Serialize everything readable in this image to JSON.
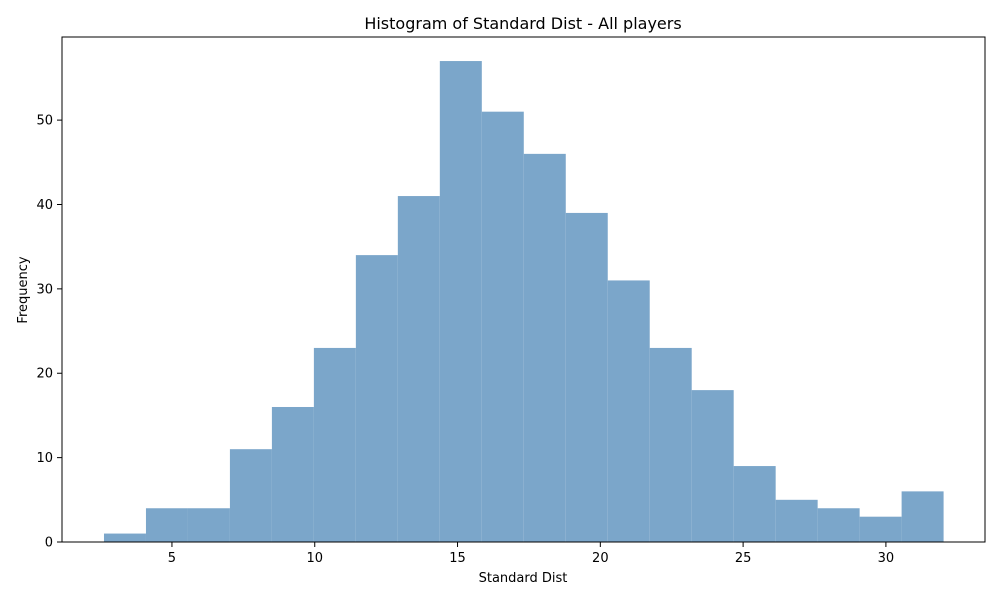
{
  "chart_data": {
    "type": "histogram",
    "title": "Histogram of Standard Dist - All players",
    "xlabel": "Standard Dist",
    "ylabel": "Frequency",
    "xlim": [
      1.15,
      33.47
    ],
    "ylim": [
      0,
      59.85
    ],
    "bar_color": "#7ba6ca",
    "grid": false,
    "legend": "none",
    "bins": [
      {
        "x0": 2.62,
        "x1": 4.09,
        "count": 1
      },
      {
        "x0": 4.09,
        "x1": 5.56,
        "count": 4
      },
      {
        "x0": 5.56,
        "x1": 7.03,
        "count": 4
      },
      {
        "x0": 7.03,
        "x1": 8.5,
        "count": 11
      },
      {
        "x0": 8.5,
        "x1": 9.97,
        "count": 16
      },
      {
        "x0": 9.97,
        "x1": 11.44,
        "count": 23
      },
      {
        "x0": 11.44,
        "x1": 12.91,
        "count": 34
      },
      {
        "x0": 12.91,
        "x1": 14.38,
        "count": 41
      },
      {
        "x0": 14.38,
        "x1": 15.85,
        "count": 57
      },
      {
        "x0": 15.85,
        "x1": 17.32,
        "count": 51
      },
      {
        "x0": 17.32,
        "x1": 18.79,
        "count": 46
      },
      {
        "x0": 18.79,
        "x1": 20.26,
        "count": 39
      },
      {
        "x0": 20.26,
        "x1": 21.73,
        "count": 31
      },
      {
        "x0": 21.73,
        "x1": 23.2,
        "count": 23
      },
      {
        "x0": 23.2,
        "x1": 24.67,
        "count": 18
      },
      {
        "x0": 24.67,
        "x1": 26.14,
        "count": 9
      },
      {
        "x0": 26.14,
        "x1": 27.61,
        "count": 5
      },
      {
        "x0": 27.61,
        "x1": 29.08,
        "count": 4
      },
      {
        "x0": 29.08,
        "x1": 30.55,
        "count": 3
      },
      {
        "x0": 30.55,
        "x1": 32.02,
        "count": 6
      }
    ],
    "x_ticks": [
      5,
      10,
      15,
      20,
      25,
      30
    ],
    "y_ticks": [
      0,
      10,
      20,
      30,
      40,
      50
    ]
  }
}
